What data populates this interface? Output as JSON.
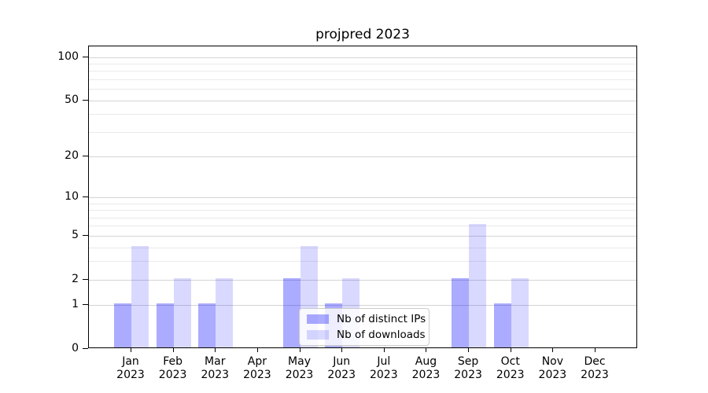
{
  "chart_data": {
    "type": "bar",
    "title": "projpred 2023",
    "categories": [
      "Jan",
      "Feb",
      "Mar",
      "Apr",
      "May",
      "Jun",
      "Jul",
      "Aug",
      "Sep",
      "Oct",
      "Nov",
      "Dec"
    ],
    "category_sublabel": "2023",
    "series": [
      {
        "name": "Nb of distinct IPs",
        "color": "#0000ff54",
        "values": [
          1,
          1,
          1,
          0,
          2,
          1,
          0,
          0,
          2,
          1,
          0,
          0
        ]
      },
      {
        "name": "Nb of downloads",
        "color": "#0000ff26",
        "values": [
          4,
          2,
          2,
          0,
          4,
          2,
          0,
          0,
          6,
          2,
          0,
          0
        ]
      }
    ],
    "y_axis": {
      "scale": "log1p",
      "major_ticks": [
        0,
        1,
        2,
        5,
        10,
        20,
        50,
        100
      ],
      "minor_ticks": [
        3,
        4,
        6,
        7,
        8,
        9,
        30,
        40,
        60,
        70,
        80,
        90
      ],
      "ymax": 118.7
    },
    "x_axis": {
      "tick_label_format": "Month over 2023"
    },
    "legend": {
      "position": "lower center inside plot"
    },
    "grid": true,
    "ylim": [
      0,
      118.7
    ]
  },
  "colors": {
    "background": "#ffffff",
    "bar_distinct_ips": "#0000ff54",
    "bar_downloads": "#0000ff26",
    "grid_major": "#d4d4d4",
    "grid_minor": "#eaeaea",
    "spine": "#000000",
    "legend_bg": "#ffffffcc",
    "legend_border": "#cccccc",
    "text": "#000000"
  }
}
